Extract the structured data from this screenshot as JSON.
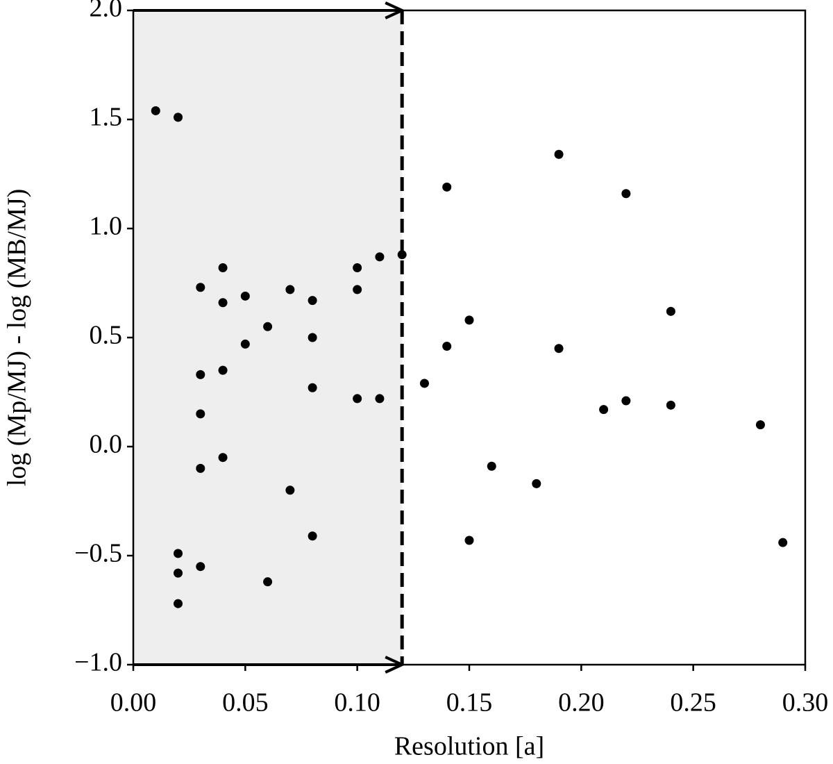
{
  "chart_data": {
    "type": "scatter",
    "x_label": "Resolution [a]",
    "y_label": "log (Mp/MJ) - log (MB/MJ)",
    "x": [
      0.01,
      0.02,
      0.02,
      0.02,
      0.02,
      0.03,
      0.03,
      0.03,
      0.03,
      0.03,
      0.04,
      0.04,
      0.04,
      0.04,
      0.05,
      0.05,
      0.06,
      0.06,
      0.07,
      0.07,
      0.08,
      0.08,
      0.08,
      0.08,
      0.1,
      0.1,
      0.1,
      0.11,
      0.11,
      0.12,
      0.13,
      0.14,
      0.14,
      0.15,
      0.15,
      0.16,
      0.18,
      0.19,
      0.19,
      0.21,
      0.22,
      0.22,
      0.24,
      0.24,
      0.28,
      0.29
    ],
    "values": [
      1.54,
      1.51,
      -0.49,
      -0.58,
      -0.72,
      0.73,
      0.33,
      0.15,
      -0.1,
      -0.55,
      0.82,
      0.66,
      0.35,
      -0.05,
      0.69,
      0.47,
      0.55,
      -0.62,
      0.72,
      -0.2,
      0.67,
      0.5,
      0.27,
      -0.41,
      0.82,
      0.72,
      0.22,
      0.87,
      0.22,
      0.88,
      0.29,
      1.19,
      0.46,
      0.58,
      -0.43,
      -0.09,
      -0.17,
      1.34,
      0.45,
      0.17,
      1.16,
      0.21,
      0.62,
      0.19,
      0.1,
      -0.44
    ],
    "color": "#000000",
    "span": {
      "xlim": [
        0,
        0.12
      ],
      "color": "#eeeeee"
    },
    "xlim": [
      0,
      0.3
    ],
    "ylim": [
      -1,
      2
    ],
    "xticks": [
      {
        "value": 0,
        "label": "0.00"
      },
      {
        "value": 0.05,
        "label": "0.05"
      },
      {
        "value": 0.1,
        "label": "0.10"
      },
      {
        "value": 0.15,
        "label": "0.15"
      },
      {
        "value": 0.2,
        "label": "0.20"
      },
      {
        "value": 0.25,
        "label": "0.25"
      },
      {
        "value": 0.3,
        "label": "0.30"
      }
    ],
    "yticks": [
      {
        "value": -1,
        "label": "−1.0"
      },
      {
        "value": -0.5,
        "label": "−0.5"
      },
      {
        "value": 0,
        "label": "0.0"
      },
      {
        "value": 0.5,
        "label": "0.5"
      },
      {
        "value": 1,
        "label": "1.0"
      },
      {
        "value": 1.5,
        "label": "1.5"
      },
      {
        "value": 2,
        "label": "2.0"
      }
    ]
  }
}
